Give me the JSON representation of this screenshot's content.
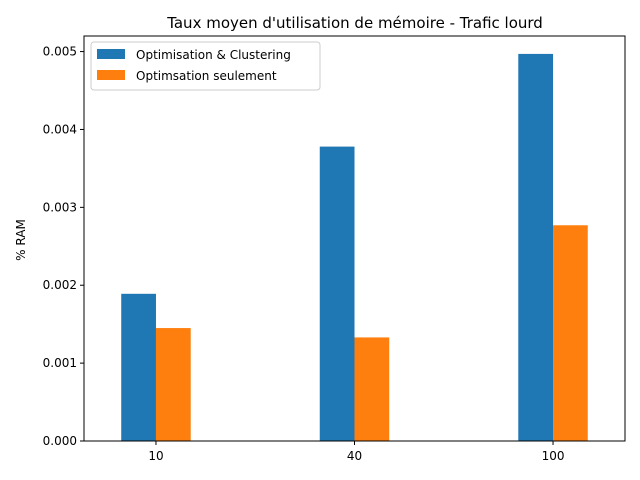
{
  "chart_data": {
    "type": "bar",
    "title": "Taux moyen d'utilisation de mémoire - Trafic lourd",
    "xlabel": "",
    "ylabel": "% RAM",
    "categories": [
      "10",
      "40",
      "100"
    ],
    "series": [
      {
        "name": "Optimisation & Clustering",
        "color": "#1f77b4",
        "values": [
          0.00189,
          0.00378,
          0.00497
        ]
      },
      {
        "name": "Optimsation seulement",
        "color": "#ff7f0e",
        "values": [
          0.00145,
          0.00133,
          0.00277
        ]
      }
    ],
    "ylim": [
      0,
      0.0052
    ],
    "yticks": [
      "0.000",
      "0.001",
      "0.002",
      "0.003",
      "0.004",
      "0.005"
    ],
    "grid": false,
    "legend_position": "top-left"
  }
}
